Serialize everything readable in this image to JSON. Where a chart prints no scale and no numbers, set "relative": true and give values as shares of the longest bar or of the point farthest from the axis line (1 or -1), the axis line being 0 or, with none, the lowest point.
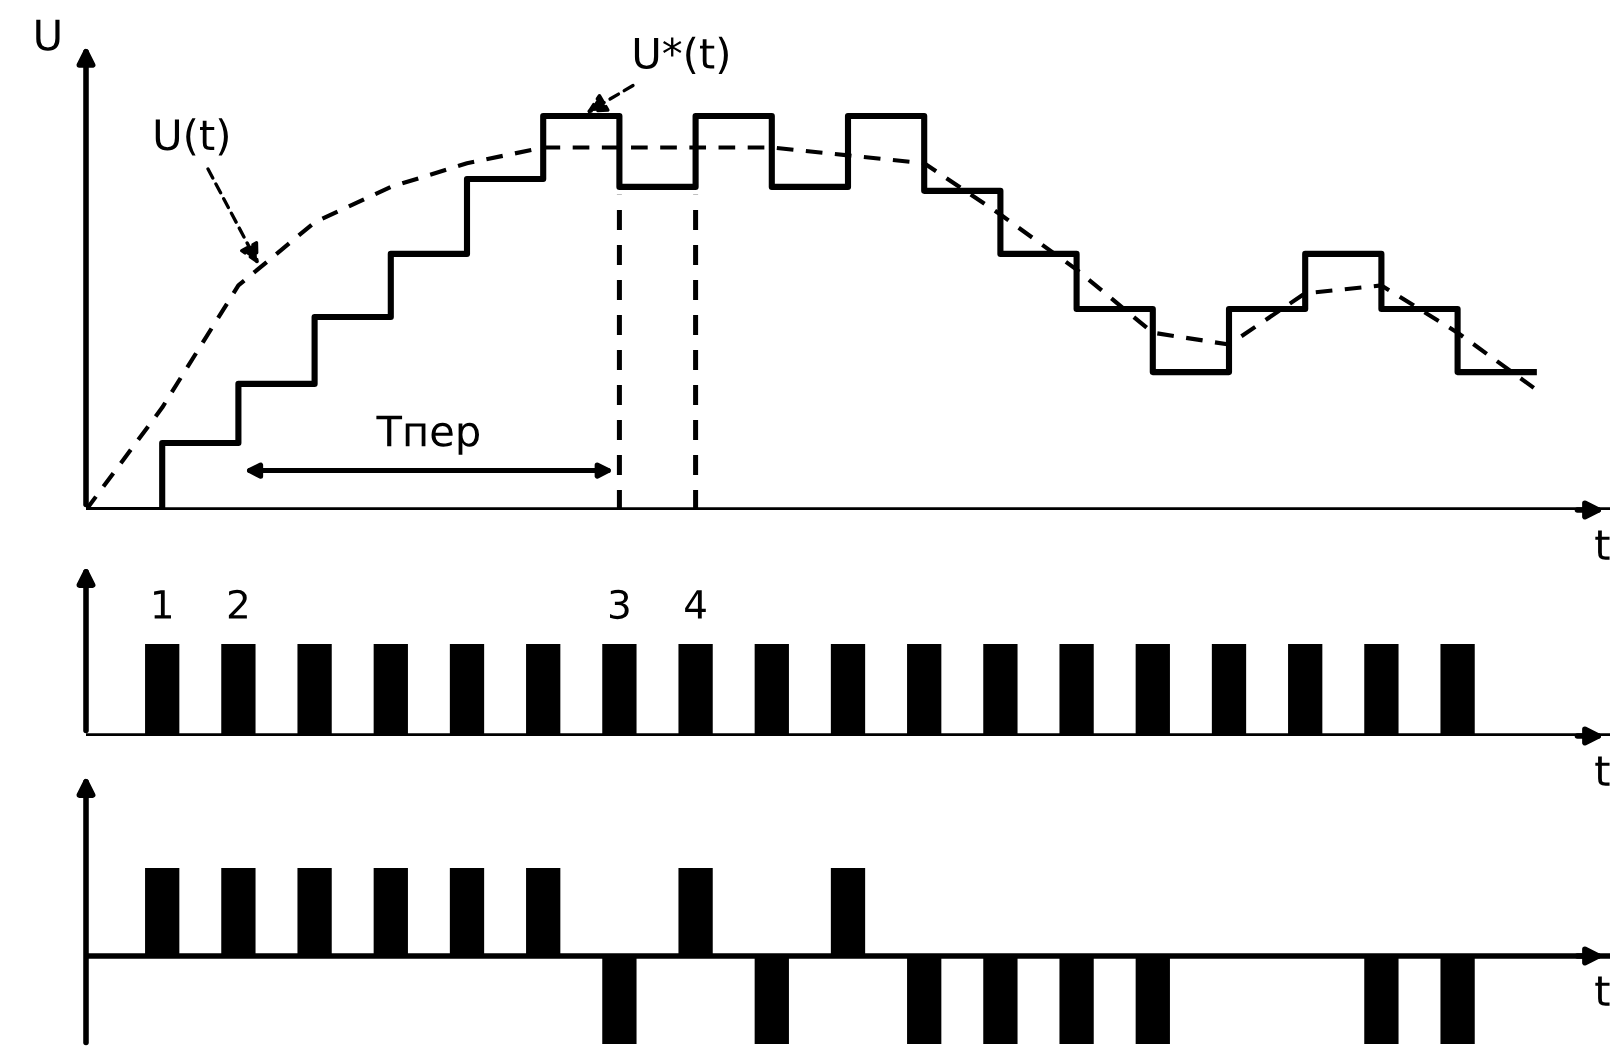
{
  "chart_data": [
    {
      "type": "line",
      "relative": true,
      "ylabel": "U",
      "xlabel": "t",
      "categories": [
        null,
        null,
        null,
        null,
        null,
        null,
        null,
        null,
        null,
        null,
        null,
        null,
        null,
        null,
        null,
        null,
        null,
        null,
        null,
        null
      ],
      "series": [
        {
          "name": "U(t)",
          "type": "line",
          "color": "#000000",
          "line_style": "dashed",
          "values": [
            0,
            0.26,
            0.57,
            0.73,
            0.82,
            0.88,
            0.92,
            0.92,
            0.92,
            0.92,
            0.9,
            0.88,
            0.75,
            0.61,
            0.45,
            0.42,
            0.55,
            0.57,
            0.45,
            0.31
          ]
        },
        {
          "name": "U*(t)",
          "type": "step",
          "color": "#000000",
          "line_style": "solid",
          "values": [
            0,
            0.17,
            0.32,
            0.49,
            0.65,
            0.84,
            1,
            0.82,
            1,
            0.82,
            1,
            0.81,
            0.65,
            0.51,
            0.35,
            0.51,
            0.65,
            0.51,
            0.35,
            0.35
          ]
        }
      ],
      "annotations": [
        "Tпер"
      ]
    },
    {
      "type": "bar",
      "relative": true,
      "xlabel": "t",
      "categories": [
        null,
        "1",
        "2",
        null,
        null,
        null,
        null,
        "3",
        "4",
        null,
        null,
        null,
        null,
        null,
        null,
        null,
        null,
        null,
        null,
        null
      ],
      "series": [
        {
          "color": "#000000",
          "values": [
            null,
            1,
            1,
            1,
            1,
            1,
            1,
            1,
            1,
            1,
            1,
            1,
            1,
            1,
            1,
            1,
            1,
            1,
            1,
            null
          ]
        }
      ]
    },
    {
      "type": "bar",
      "relative": true,
      "xlabel": "t",
      "categories": [
        null,
        null,
        null,
        null,
        null,
        null,
        null,
        null,
        null,
        null,
        null,
        null,
        null,
        null,
        null,
        null,
        null,
        null,
        null,
        null
      ],
      "series": [
        {
          "color": "#000000",
          "values": [
            null,
            1,
            1,
            1,
            1,
            1,
            1,
            -1,
            1,
            -1,
            1,
            -1,
            -1,
            -1,
            -1,
            null,
            null,
            -1,
            -1,
            null
          ]
        }
      ]
    }
  ]
}
